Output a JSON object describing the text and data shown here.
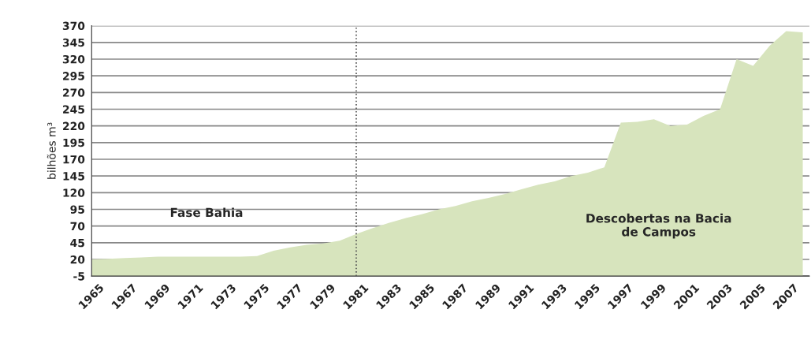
{
  "chart_data": {
    "type": "area",
    "ylabel": "bilhões m³",
    "x": [
      1965,
      1966,
      1967,
      1968,
      1969,
      1970,
      1971,
      1972,
      1973,
      1974,
      1975,
      1976,
      1977,
      1978,
      1979,
      1980,
      1981,
      1982,
      1983,
      1984,
      1985,
      1986,
      1987,
      1988,
      1989,
      1990,
      1991,
      1992,
      1993,
      1994,
      1995,
      1996,
      1997,
      1998,
      1999,
      2000,
      2001,
      2002,
      2003,
      2004,
      2005,
      2006,
      2007,
      2008
    ],
    "series": [
      {
        "color": "#d7e4bd",
        "values": [
          20,
          21,
          22,
          23,
          24,
          24,
          24,
          24,
          24,
          24,
          25,
          33,
          38,
          42,
          44,
          48,
          58,
          67,
          75,
          82,
          88,
          95,
          100,
          107,
          112,
          118,
          125,
          132,
          137,
          145,
          150,
          158,
          225,
          226,
          230,
          220,
          222,
          235,
          245,
          320,
          310,
          340,
          362,
          360
        ]
      }
    ],
    "xlim": [
      1965,
      2008.4
    ],
    "xticks": [
      1965,
      1967,
      1969,
      1971,
      1973,
      1975,
      1977,
      1979,
      1981,
      1983,
      1985,
      1987,
      1989,
      1991,
      1993,
      1995,
      1997,
      1999,
      2001,
      2003,
      2005,
      2007
    ],
    "ylim": [
      -5,
      370
    ],
    "yticks": [
      -5,
      20,
      45,
      70,
      95,
      120,
      145,
      170,
      195,
      220,
      245,
      270,
      295,
      320,
      345,
      370
    ],
    "grid": "y",
    "ref_lines": [
      {
        "axis": "x",
        "value": 1981,
        "color": "#555555",
        "line_style": "dotted"
      }
    ],
    "annotations": [
      "Fase Bahia",
      "Descobertas na Bacia\nde Campos"
    ]
  }
}
